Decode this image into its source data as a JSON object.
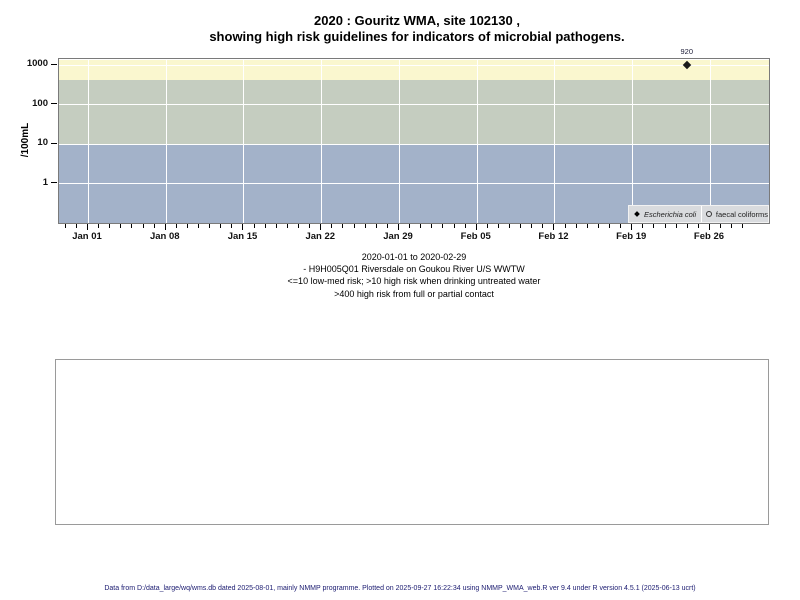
{
  "title": {
    "line1": "2020 : Gouritz WMA, site 102130 ,",
    "line2": "showing high risk guidelines for indicators of microbial pathogens."
  },
  "chart_data": {
    "type": "scatter",
    "title": "2020 : Gouritz WMA, site 102130 , showing high risk guidelines for indicators of microbial pathogens.",
    "ylabel": "/100mL",
    "yscale": "log",
    "yticks": [
      1,
      10,
      100,
      1000
    ],
    "ylim": [
      0.09,
      1350
    ],
    "grid": "white major gridlines on",
    "x_range": {
      "start": "2020-01-01",
      "end": "2020-02-29",
      "total_days": 59
    },
    "x_major_ticks": [
      {
        "day": 0,
        "label": "Jan 01"
      },
      {
        "day": 7,
        "label": "Jan 08"
      },
      {
        "day": 14,
        "label": "Jan 15"
      },
      {
        "day": 21,
        "label": "Jan 22"
      },
      {
        "day": 28,
        "label": "Jan 29"
      },
      {
        "day": 35,
        "label": "Feb 05"
      },
      {
        "day": 42,
        "label": "Feb 12"
      },
      {
        "day": 49,
        "label": "Feb 19"
      },
      {
        "day": 56,
        "label": "Feb 26"
      }
    ],
    "x_minor_tick_every_days": 1,
    "bands": [
      {
        "name": "high risk from full or partial contact",
        "threshold": ">400",
        "from": 400,
        "to": 1350,
        "color": "#FAF7CF"
      },
      {
        "name": "high risk when drinking untreated water",
        "threshold": ">10",
        "from": 10,
        "to": 400,
        "color": "#C5CDC0"
      },
      {
        "name": "low-med risk",
        "threshold": "<=10",
        "from": 0.09,
        "to": 10,
        "color": "#A3B2C9"
      }
    ],
    "series": [
      {
        "name": "Escherichia coli",
        "marker": "filled-diamond",
        "points": [
          {
            "date": "2020-02-24",
            "day": 54,
            "value": 920,
            "label": "920"
          }
        ]
      },
      {
        "name": "faecal coliforms",
        "marker": "open-circle",
        "points": []
      }
    ],
    "legend": {
      "position": "bottom-right inside plot",
      "entries": [
        {
          "label": "Escherichia coli",
          "marker": "filled-diamond"
        },
        {
          "label": "faecal coliforms",
          "marker": "open-circle"
        }
      ]
    }
  },
  "subtitle_lines": [
    "2020-01-01 to 2020-02-29",
    "- H9H005Q01 Riversdale on Goukou River U/S WWTW",
    "<=10 low-med risk; >10 high risk when drinking untreated water",
    ">400 high risk from full or partial contact"
  ],
  "footer": "Data from D:/data_large/wq/wms.db dated 2025-08-01, mainly NMMP programme. Plotted on 2025-09-27 16:22:34 using NMMP_WMA_web.R ver 9.4 under R version 4.5.1 (2025-06-13 ucrt)",
  "colors": {
    "band_high_contact": "#FAF7CF",
    "band_high_drinking": "#C5CDC0",
    "band_low_med": "#A3B2C9",
    "gridline": "#FFFFFF",
    "plot_border": "#7A7A7A",
    "legend_bg": "#D9DBDE",
    "footer_text": "#1A1A70",
    "marker": "#1A1A1A"
  }
}
